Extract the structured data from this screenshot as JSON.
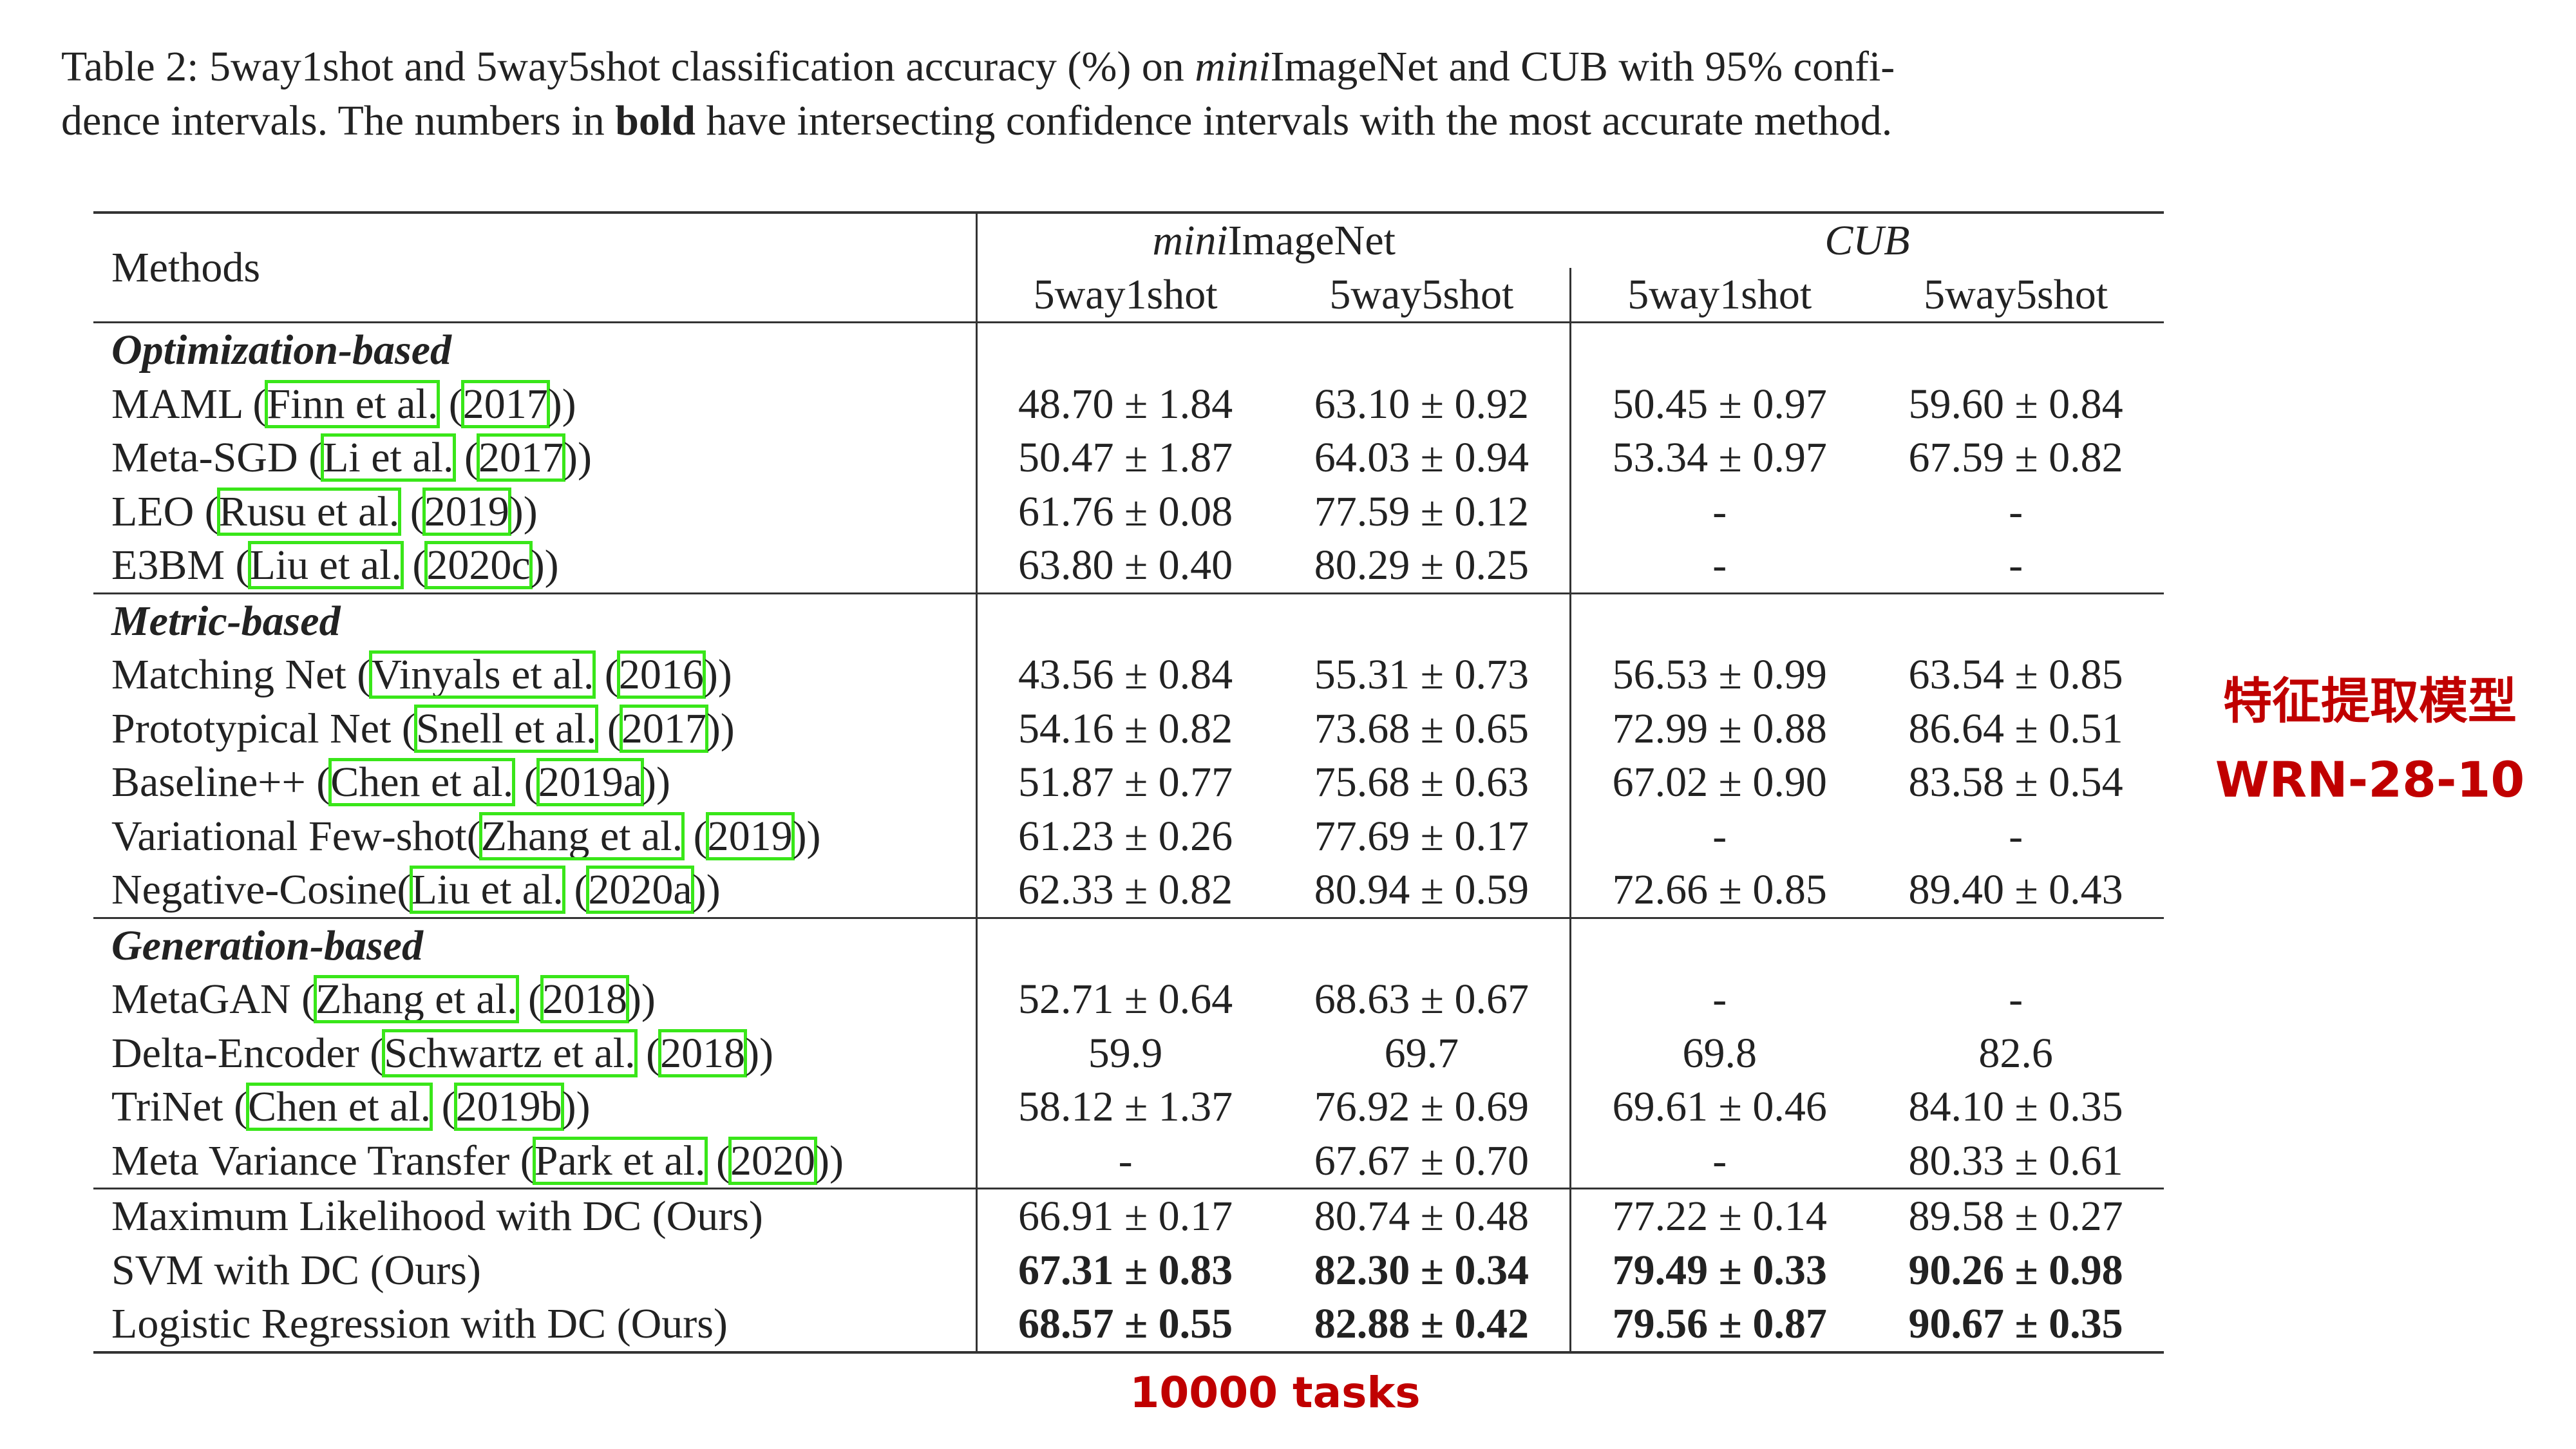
{
  "caption": {
    "prefix": "Table 2:  5way1shot and 5way5shot classification accuracy (%) on ",
    "mini": "mini",
    "mid1": "ImageNet and CUB with 95% confi-",
    "line2a": "dence intervals. The numbers in ",
    "bold": "bold",
    "line2b": " have intersecting confidence intervals with the most accurate method."
  },
  "header": {
    "methods": "Methods",
    "group1_italic": "mini",
    "group1_rest": "ImageNet",
    "group2": "CUB",
    "subcols": [
      "5way1shot",
      "5way5shot",
      "5way1shot",
      "5way5shot"
    ]
  },
  "groups": [
    {
      "title": "Optimization-based",
      "rows": [
        {
          "name": "MAML (",
          "cite1": "Finn et al.",
          "sep": " (",
          "cite2": "2017",
          "close": "))",
          "vals": [
            "48.70 ± 1.84",
            "63.10 ± 0.92",
            "50.45 ± 0.97",
            "59.60 ± 0.84"
          ]
        },
        {
          "name": "Meta-SGD (",
          "cite1": "Li et al.",
          "sep": " (",
          "cite2": "2017",
          "close": "))",
          "vals": [
            "50.47 ± 1.87",
            "64.03 ± 0.94",
            "53.34 ± 0.97",
            "67.59 ± 0.82"
          ]
        },
        {
          "name": "LEO (",
          "cite1": "Rusu et al.",
          "sep": " (",
          "cite2": "2019",
          "close": "))",
          "vals": [
            "61.76 ± 0.08",
            "77.59 ± 0.12",
            "-",
            "-"
          ]
        },
        {
          "name": "E3BM (",
          "cite1": "Liu et al.",
          "sep": " (",
          "cite2": "2020c",
          "close": "))",
          "vals": [
            "63.80 ± 0.40",
            "80.29 ± 0.25",
            "-",
            "-"
          ]
        }
      ]
    },
    {
      "title": "Metric-based",
      "rows": [
        {
          "name": "Matching Net (",
          "cite1": "Vinyals et al.",
          "sep": " (",
          "cite2": "2016",
          "close": "))",
          "vals": [
            "43.56 ± 0.84",
            "55.31 ± 0.73",
            "56.53 ± 0.99",
            "63.54 ± 0.85"
          ]
        },
        {
          "name": "Prototypical Net (",
          "cite1": "Snell et al.",
          "sep": " (",
          "cite2": "2017",
          "close": "))",
          "vals": [
            "54.16 ± 0.82",
            "73.68 ± 0.65",
            "72.99 ± 0.88",
            "86.64 ± 0.51"
          ]
        },
        {
          "name": "Baseline++ (",
          "cite1": "Chen et al.",
          "sep": " (",
          "cite2": "2019a",
          "close": "))",
          "vals": [
            "51.87 ± 0.77",
            "75.68 ± 0.63",
            "67.02 ± 0.90",
            "83.58 ± 0.54"
          ]
        },
        {
          "name": "Variational Few-shot(",
          "cite1": "Zhang et al.",
          "sep": " (",
          "cite2": "2019",
          "close": "))",
          "vals": [
            "61.23 ± 0.26",
            "77.69 ± 0.17",
            "-",
            "-"
          ]
        },
        {
          "name": "Negative-Cosine(",
          "cite1": "Liu et al.",
          "sep": " (",
          "cite2": "2020a",
          "close": "))",
          "vals": [
            "62.33 ± 0.82",
            "80.94 ± 0.59",
            "72.66 ± 0.85",
            "89.40 ± 0.43"
          ]
        }
      ]
    },
    {
      "title": "Generation-based",
      "rows": [
        {
          "name": "MetaGAN (",
          "cite1": "Zhang et al.",
          "sep": " (",
          "cite2": "2018",
          "close": "))",
          "vals": [
            "52.71 ± 0.64",
            "68.63 ± 0.67",
            "-",
            "-"
          ]
        },
        {
          "name": "Delta-Encoder (",
          "cite1": "Schwartz et al.",
          "sep": " (",
          "cite2": "2018",
          "close": "))",
          "vals": [
            "59.9",
            "69.7",
            "69.8",
            "82.6"
          ]
        },
        {
          "name": "TriNet (",
          "cite1": "Chen et al.",
          "sep": " (",
          "cite2": "2019b",
          "close": "))",
          "vals": [
            "58.12 ± 1.37",
            "76.92 ± 0.69",
            "69.61 ± 0.46",
            "84.10 ± 0.35"
          ]
        },
        {
          "name": "Meta Variance Transfer (",
          "cite1": "Park et al.",
          "sep": " (",
          "cite2": "2020",
          "close": "))",
          "vals": [
            "-",
            "67.67 ± 0.70",
            "-",
            "80.33 ± 0.61"
          ]
        }
      ]
    }
  ],
  "ours": [
    {
      "name": "Maximum Likelihood with DC (Ours)",
      "bold": false,
      "vals": [
        "66.91 ± 0.17",
        "80.74 ± 0.48",
        "77.22 ± 0.14",
        "89.58 ± 0.27"
      ]
    },
    {
      "name": "SVM with DC (Ours)",
      "bold": true,
      "vals": [
        "67.31 ± 0.83",
        "82.30 ± 0.34",
        "79.49 ± 0.33",
        "90.26 ± 0.98"
      ]
    },
    {
      "name": "Logistic Regression with DC (Ours)",
      "bold": true,
      "vals": [
        "68.57 ± 0.55",
        "82.88 ± 0.42",
        "79.56 ± 0.87",
        "90.67 ± 0.35"
      ]
    }
  ],
  "annotations": {
    "model_line1": "特征提取模型",
    "model_line2": "WRN-28-10",
    "tasks": "10000 tasks",
    "color": "#c00000",
    "cite_box_color": "#39e619"
  }
}
